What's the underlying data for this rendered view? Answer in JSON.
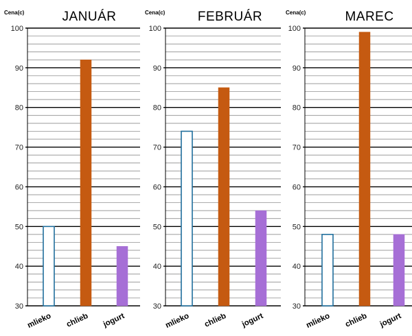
{
  "chart_data": [
    {
      "type": "bar",
      "title": "JANUÁR",
      "ylabel": "Cena(c)",
      "xlabel": "",
      "ylim": [
        30,
        100
      ],
      "y_ticks": [
        "30",
        "40",
        "50",
        "60",
        "70",
        "80",
        "90",
        "100"
      ],
      "categories": [
        "mlieko",
        "chlieb",
        "jogurt"
      ],
      "values": [
        50,
        92,
        45
      ],
      "bar_styles": [
        {
          "fill": "#ffffff",
          "stroke": "#1f6e9c"
        },
        {
          "fill": "#c55a11",
          "stroke": "#c55a11"
        },
        {
          "fill": "#a66fd6",
          "stroke": "#a66fd6"
        }
      ],
      "grid": true,
      "minor_grid_step": 2
    },
    {
      "type": "bar",
      "title": "FEBRUÁR",
      "ylabel": "Cena(c)",
      "xlabel": "",
      "ylim": [
        30,
        100
      ],
      "y_ticks": [
        "30",
        "40",
        "50",
        "60",
        "70",
        "80",
        "90",
        "100"
      ],
      "categories": [
        "mlieko",
        "chlieb",
        "jogurt"
      ],
      "values": [
        74,
        85,
        54
      ],
      "bar_styles": [
        {
          "fill": "#ffffff",
          "stroke": "#1f6e9c"
        },
        {
          "fill": "#c55a11",
          "stroke": "#c55a11"
        },
        {
          "fill": "#a66fd6",
          "stroke": "#a66fd6"
        }
      ],
      "grid": true,
      "minor_grid_step": 2
    },
    {
      "type": "bar",
      "title": "MAREC",
      "ylabel": "Cena(c)",
      "xlabel": "",
      "ylim": [
        30,
        100
      ],
      "y_ticks": [
        "30",
        "40",
        "50",
        "60",
        "70",
        "80",
        "90",
        "100"
      ],
      "categories": [
        "mlieko",
        "chlieb",
        "jogurt"
      ],
      "values": [
        48,
        99,
        48
      ],
      "bar_styles": [
        {
          "fill": "#ffffff",
          "stroke": "#1f6e9c"
        },
        {
          "fill": "#c55a11",
          "stroke": "#c55a11"
        },
        {
          "fill": "#a66fd6",
          "stroke": "#a66fd6"
        }
      ],
      "grid": true,
      "minor_grid_step": 2
    }
  ]
}
